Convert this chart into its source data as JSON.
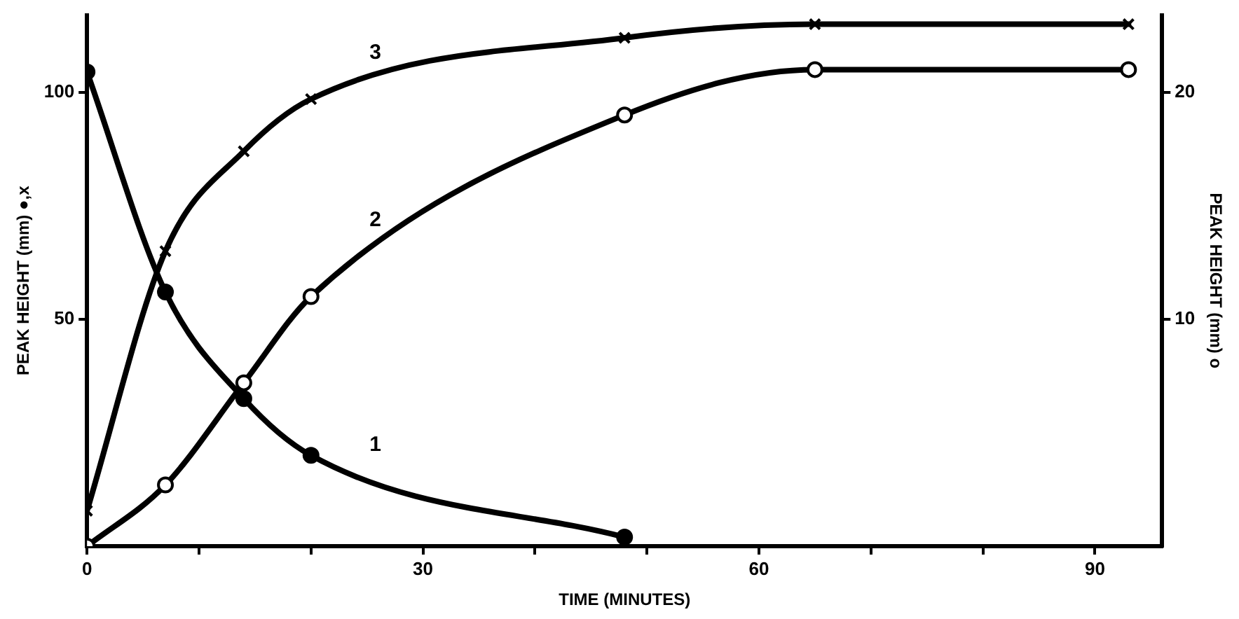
{
  "chart_data": {
    "type": "line",
    "xlabel": "TIME (MINUTES)",
    "ylabel": "PEAK HEIGHT (mm) ●,x",
    "y2label": "PEAK HEIGHT (mm) o",
    "xlim": [
      0,
      96
    ],
    "xticks": [
      0,
      {
        "value": 10,
        "label": null
      },
      {
        "value": 20,
        "label": null
      },
      30,
      {
        "value": 40,
        "label": null
      },
      {
        "value": 50,
        "label": null
      },
      60,
      {
        "value": 70,
        "label": null
      },
      {
        "value": 80,
        "label": null
      },
      90
    ],
    "ylim": [
      0,
      117
    ],
    "yticks": [
      50,
      100
    ],
    "y2lim": [
      0,
      23.4
    ],
    "y2ticks": [
      10,
      20
    ],
    "grid": false,
    "legend": false,
    "line_style": "solid",
    "series": [
      {
        "name": "1",
        "color": "#000000",
        "marker": "circle",
        "x": [
          0,
          7,
          14,
          20,
          48
        ],
        "values": [
          104.5,
          56,
          32.5,
          20,
          2
        ]
      },
      {
        "name": "2",
        "color": "#000000",
        "marker": "circle",
        "axis": "y2",
        "x": [
          0,
          7,
          14,
          20,
          48,
          65,
          93
        ],
        "values": [
          0,
          2.7,
          7.2,
          11,
          19,
          21,
          21
        ]
      },
      {
        "name": "3",
        "color": "#000000",
        "marker": "cross",
        "x": [
          0,
          7,
          14,
          20,
          48,
          65,
          93
        ],
        "values": [
          7.8,
          65,
          87,
          98.5,
          112,
          115,
          115
        ]
      }
    ]
  }
}
